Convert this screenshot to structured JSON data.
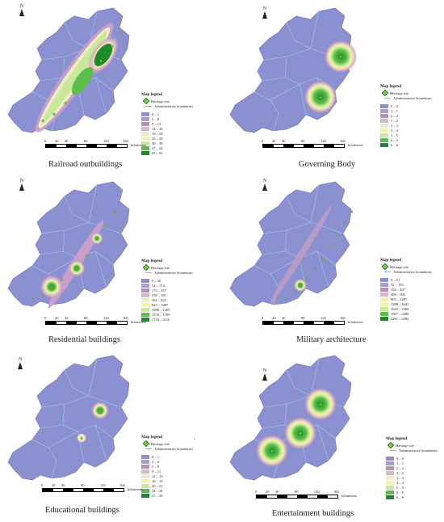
{
  "north_label": "N",
  "legend_title": "Map legend",
  "heritage_label": "Heritage site",
  "boundary_label": "Administrative boundaries",
  "scale": {
    "ticks": [
      "0",
      "20",
      "40",
      "80",
      "120",
      "160"
    ],
    "unit": "kilometers"
  },
  "colors": {
    "ramp": [
      "#8a90d0",
      "#a89cd4",
      "#b88fb8",
      "#d8b8c8",
      "#f0ecc4",
      "#f4f4a8",
      "#c8e89a",
      "#5cbf4a",
      "#1e8a2a"
    ],
    "base": "#8a90d0",
    "boundary": "#9cc0e6"
  },
  "panels": [
    {
      "caption": "Railroad outbuildings",
      "classes": [
        "0 – 2",
        "3 – 8",
        "9 – 13",
        "14 – 18",
        "19 – 24",
        "25 – 29",
        "30 – 36",
        "37 – 44",
        "45 – 52"
      ]
    },
    {
      "caption": "Governing Body",
      "classes": [
        "0 – 0",
        "1 – 1",
        "2 – 2",
        "3 – 2",
        "3 – 3",
        "4 – 4",
        "5 – 5",
        "6 – 5",
        "6 – 6"
      ]
    },
    {
      "caption": "Residential buildings",
      "classes": [
        "0 – 50",
        "51 – 174",
        "175 – 357",
        "358 – 581",
        "582 – 822",
        "823 – 1087",
        "1088 – 1369",
        "1370 – 1709",
        "1710 – 2116"
      ]
    },
    {
      "caption": "Military architecture",
      "classes": [
        "0 – 51",
        "52 – 193",
        "194 – 407",
        "408 – 902",
        "903 – 1287",
        "1288 – 1642",
        "1643 – 1966",
        "1967 – 2280",
        "2281 – 2584"
      ]
    },
    {
      "caption": "Educational buildings",
      "classes": [
        "0 – 1",
        "2 – 4",
        "5 – 8",
        "9 – 11",
        "12 – 15",
        "16 – 19",
        "20 – 21",
        "24 – 26",
        "27 – 30"
      ]
    },
    {
      "caption": "Entertainment buildings",
      "classes": [
        "0 – 0",
        "1 – 1",
        "2 – 2",
        "3 – 2",
        "3 – 3",
        "4 – 4",
        "5 – 5",
        "6 – 5",
        "6 – 6"
      ]
    }
  ],
  "stray_mark": "o"
}
